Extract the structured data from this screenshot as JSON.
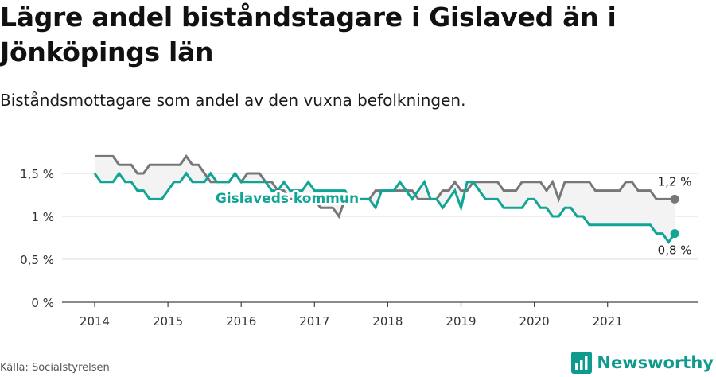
{
  "title": "Lägre andel biståndstagare i Gislaved än i Jönköpings län",
  "subtitle": "Biståndsmottagare som andel av den vuxna befolkningen.",
  "source": "Källa: Socialstyrelsen",
  "brand": "Newsworthy",
  "colors": {
    "kommun": "#12a596",
    "lan": "#777777",
    "axis": "#444444",
    "grid": "#dddddd",
    "band": "#f3f3f3"
  },
  "chart_data": {
    "type": "line",
    "title": "Lägre andel biståndstagare i Gislaved än i Jönköpings län",
    "subtitle": "Biståndsmottagare som andel av den vuxna befolkningen.",
    "ylim": [
      0,
      1.8
    ],
    "y_ticks": [
      0,
      0.5,
      1,
      1.5
    ],
    "y_tick_labels": [
      "0 %",
      "0,5 %",
      "1 %",
      "1,5 %"
    ],
    "x_ticks": [
      2014,
      2015,
      2016,
      2017,
      2018,
      2019,
      2020,
      2021
    ],
    "x_tick_labels": [
      "2014",
      "2015",
      "2016",
      "2017",
      "2018",
      "2019",
      "2020",
      "2021"
    ],
    "x_start": 2014.0,
    "x_step_months": 1,
    "series": [
      {
        "name": "Gislaveds kommun",
        "color": "#12a596",
        "end_label": "0,8 %",
        "values": [
          1.5,
          1.4,
          1.4,
          1.4,
          1.5,
          1.4,
          1.4,
          1.3,
          1.3,
          1.2,
          1.2,
          1.2,
          1.3,
          1.4,
          1.4,
          1.5,
          1.4,
          1.4,
          1.4,
          1.5,
          1.4,
          1.4,
          1.4,
          1.5,
          1.4,
          1.4,
          1.4,
          1.4,
          1.4,
          1.3,
          1.3,
          1.4,
          1.3,
          1.3,
          1.3,
          1.4,
          1.3,
          1.3,
          1.3,
          1.3,
          1.3,
          1.3,
          1.2,
          1.2,
          1.2,
          1.2,
          1.1,
          1.3,
          1.3,
          1.3,
          1.4,
          1.3,
          1.2,
          1.3,
          1.4,
          1.2,
          1.2,
          1.1,
          1.2,
          1.3,
          1.1,
          1.4,
          1.4,
          1.3,
          1.2,
          1.2,
          1.2,
          1.1,
          1.1,
          1.1,
          1.1,
          1.2,
          1.2,
          1.1,
          1.1,
          1.0,
          1.0,
          1.1,
          1.1,
          1.0,
          1.0,
          0.9,
          0.9,
          0.9,
          0.9,
          0.9,
          0.9,
          0.9,
          0.9,
          0.9,
          0.9,
          0.9,
          0.8,
          0.8,
          0.7,
          0.8
        ]
      },
      {
        "name": "",
        "color": "#777777",
        "end_label": "1,2 %",
        "values": [
          1.7,
          1.7,
          1.7,
          1.7,
          1.6,
          1.6,
          1.6,
          1.5,
          1.5,
          1.6,
          1.6,
          1.6,
          1.6,
          1.6,
          1.6,
          1.7,
          1.6,
          1.6,
          1.5,
          1.4,
          1.4,
          1.4,
          1.4,
          1.5,
          1.4,
          1.5,
          1.5,
          1.5,
          1.4,
          1.4,
          1.3,
          1.3,
          1.2,
          1.2,
          1.2,
          1.2,
          1.2,
          1.1,
          1.1,
          1.1,
          1.0,
          1.2,
          1.2,
          1.2,
          1.2,
          1.2,
          1.3,
          1.3,
          1.3,
          1.3,
          1.3,
          1.3,
          1.3,
          1.2,
          1.2,
          1.2,
          1.2,
          1.3,
          1.3,
          1.4,
          1.3,
          1.3,
          1.4,
          1.4,
          1.4,
          1.4,
          1.4,
          1.3,
          1.3,
          1.3,
          1.4,
          1.4,
          1.4,
          1.4,
          1.3,
          1.4,
          1.2,
          1.4,
          1.4,
          1.4,
          1.4,
          1.4,
          1.3,
          1.3,
          1.3,
          1.3,
          1.3,
          1.4,
          1.4,
          1.3,
          1.3,
          1.3,
          1.2,
          1.2,
          1.2,
          1.2
        ]
      }
    ],
    "series_label": "Gislaveds kommun"
  }
}
